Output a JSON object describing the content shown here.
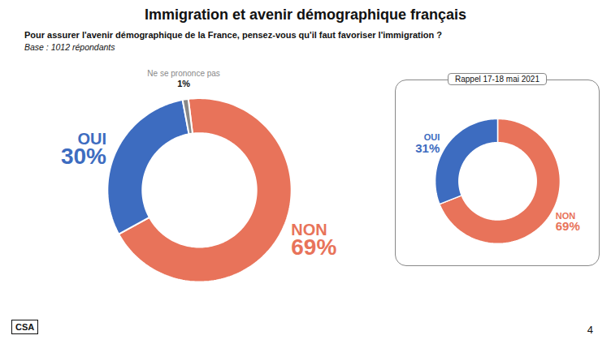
{
  "chart_data": [
    {
      "type": "donut",
      "title": "Immigration et avenir démographique français",
      "subtitle": "Pour assurer l'avenir démographique de la France, pensez-vous qu'il faut favoriser l'immigration ?",
      "annotations": [
        "Base : 1012 répondants",
        "4",
        "CSA"
      ],
      "categories": [
        "NON",
        "OUI",
        "Ne se prononce pas"
      ],
      "values": [
        69,
        30,
        1
      ],
      "value_labels": [
        "69%",
        "30%",
        "1%"
      ],
      "colors": [
        "#E8735A",
        "#3D6CC0",
        "#888888"
      ],
      "data_labels": true
    },
    {
      "type": "donut",
      "title": "Rappel 17-18 mai 2021",
      "categories": [
        "NON",
        "OUI"
      ],
      "values": [
        69,
        31
      ],
      "value_labels": [
        "69%",
        "31%"
      ],
      "colors": [
        "#E8735A",
        "#3D6CC0"
      ],
      "data_labels": true
    }
  ]
}
